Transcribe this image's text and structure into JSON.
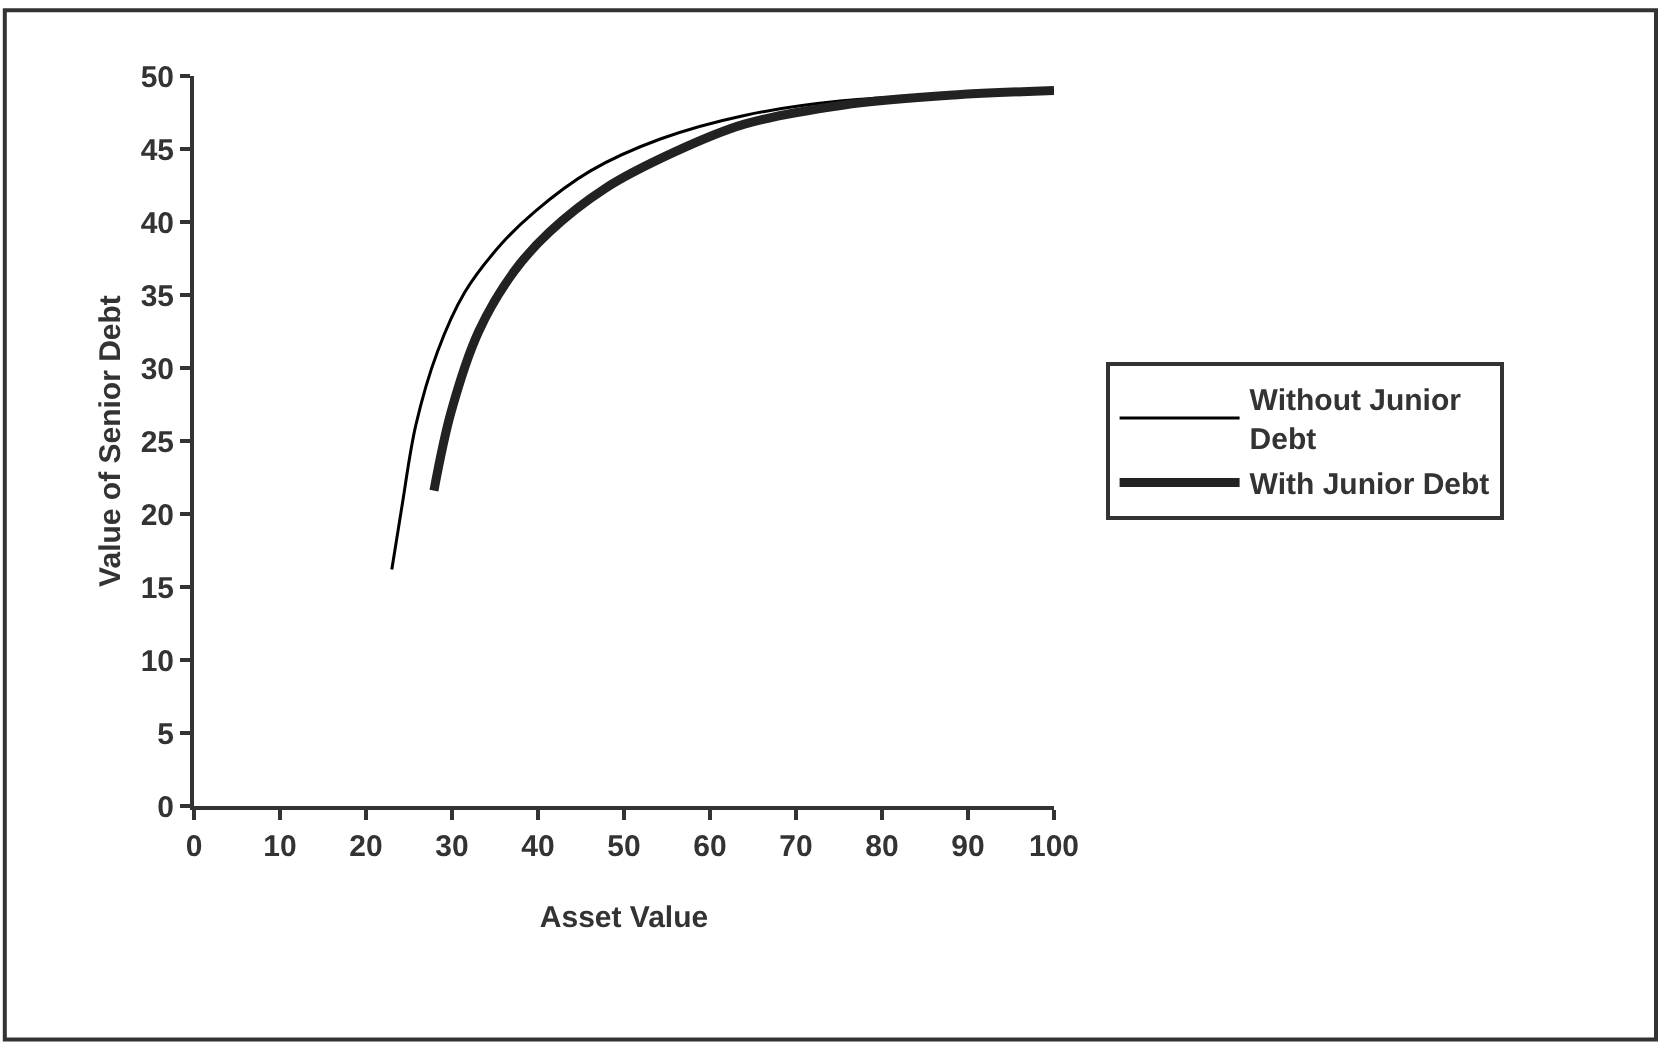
{
  "chart_data": {
    "type": "line",
    "xlabel": "Asset Value",
    "ylabel": "Value of Senior Debt",
    "xlim": [
      0,
      100
    ],
    "xticks": [
      0,
      10,
      20,
      30,
      40,
      50,
      60,
      70,
      80,
      90,
      100
    ],
    "ylim": [
      0,
      50
    ],
    "yticks": [
      0,
      5,
      10,
      15,
      20,
      25,
      30,
      35,
      40,
      45,
      50
    ],
    "legend": "right",
    "marker": "none",
    "series": [
      {
        "name": "Without Junior Debt",
        "color": "#000000",
        "x": [
          23.0,
          24.2,
          25.8,
          28.3,
          31.5,
          35.6,
          39.6,
          46.1,
          54.3,
          64.0,
          75.4,
          88.4,
          100
        ],
        "values": [
          16.2,
          20.6,
          26.1,
          31.1,
          35.2,
          38.4,
          40.7,
          43.5,
          45.7,
          47.3,
          48.3,
          48.7,
          49.0
        ]
      },
      {
        "name": "With Junior Debt",
        "color": "#222222",
        "x": [
          27.9,
          29.9,
          33.1,
          37.2,
          41.3,
          47.8,
          55.9,
          64.0,
          75.4,
          88.4,
          100
        ],
        "values": [
          21.6,
          27.0,
          32.5,
          36.6,
          39.3,
          42.3,
          44.8,
          46.7,
          48.0,
          48.7,
          49.0
        ]
      }
    ]
  }
}
